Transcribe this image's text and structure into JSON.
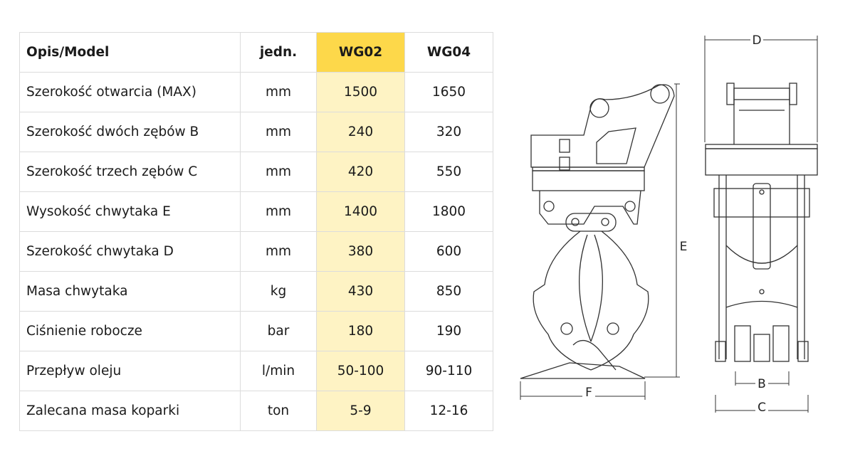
{
  "table": {
    "headers": [
      "Opis/Model",
      "jedn.",
      "WG02",
      "WG04"
    ],
    "rows": [
      [
        "Szerokość otwarcia (MAX)",
        "mm",
        "1500",
        "1650"
      ],
      [
        "Szerokość dwóch zębów B",
        "mm",
        "240",
        "320"
      ],
      [
        "Szerokość trzech zębów C",
        "mm",
        "420",
        "550"
      ],
      [
        "Wysokość chwytaka E",
        "mm",
        "1400",
        "1800"
      ],
      [
        "Szerokość chwytaka D",
        "mm",
        "380",
        "600"
      ],
      [
        "Masa chwytaka",
        "kg",
        "430",
        "850"
      ],
      [
        "Ciśnienie robocze",
        "bar",
        "180",
        "190"
      ],
      [
        "Przepływ oleju",
        "l/min",
        "50-100",
        "90-110"
      ],
      [
        "Zalecana masa koparki",
        "ton",
        "5-9",
        "12-16"
      ]
    ],
    "highlight_color": "#fdd84a",
    "highlight_column_bg": "#fef3c4"
  },
  "drawing": {
    "labels": {
      "D": "D",
      "E": "E",
      "F": "F",
      "B": "B",
      "C": "C"
    }
  }
}
